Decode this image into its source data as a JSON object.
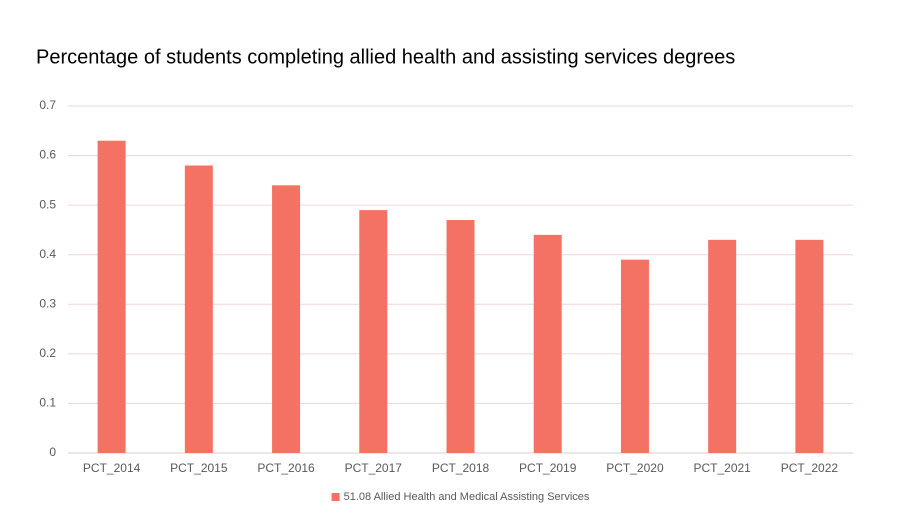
{
  "chart_data": {
    "type": "bar",
    "title": "Percentage of students completing allied health and assisting services degrees",
    "categories": [
      "PCT_2014",
      "PCT_2015",
      "PCT_2016",
      "PCT_2017",
      "PCT_2018",
      "PCT_2019",
      "PCT_2020",
      "PCT_2021",
      "PCT_2022"
    ],
    "series": [
      {
        "name": "51.08 Allied Health and Medical Assisting Services",
        "color": "#f47264",
        "values": [
          0.63,
          0.58,
          0.54,
          0.49,
          0.47,
          0.44,
          0.39,
          0.43,
          0.43
        ]
      }
    ],
    "ylim": [
      0,
      0.7
    ],
    "yticks": [
      0,
      0.1,
      0.2,
      0.3,
      0.4,
      0.5,
      0.6,
      0.7
    ],
    "grid": true,
    "legend": "bottom"
  }
}
